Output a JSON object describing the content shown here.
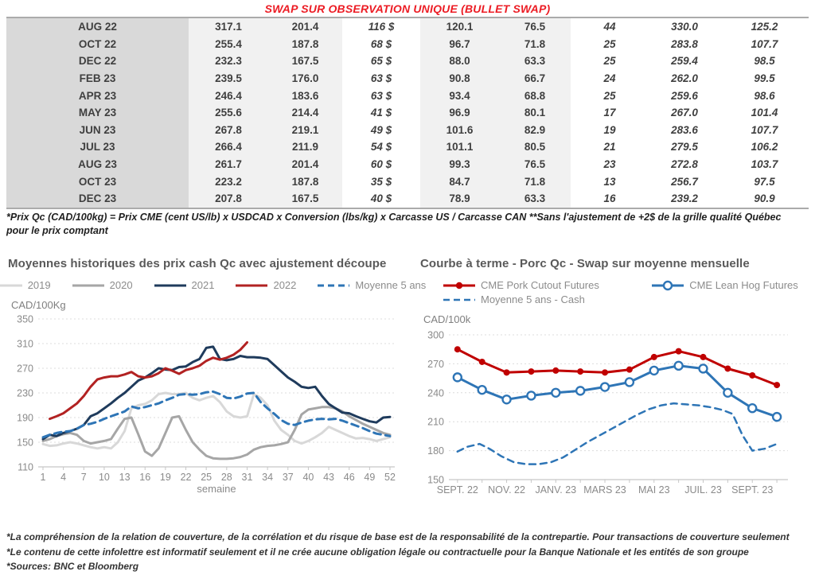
{
  "title": "SWAP SUR OBSERVATION UNIQUE (BULLET SWAP)",
  "accent_colors": {
    "title_red": "#ec1c24",
    "table_green": "#17a24f",
    "table_blue": "#3a6fc9"
  },
  "table": {
    "rows": [
      [
        "AUG 22",
        "317.1",
        "201.4",
        "116 $",
        "120.1",
        "76.5",
        "44",
        "330.0",
        "125.2"
      ],
      [
        "OCT 22",
        "255.4",
        "187.8",
        "68 $",
        "96.7",
        "71.8",
        "25",
        "283.8",
        "107.7"
      ],
      [
        "DEC 22",
        "232.3",
        "167.5",
        "65 $",
        "88.0",
        "63.3",
        "25",
        "259.4",
        "98.5"
      ],
      [
        "FEB 23",
        "239.5",
        "176.0",
        "63 $",
        "90.8",
        "66.7",
        "24",
        "262.0",
        "99.5"
      ],
      [
        "APR 23",
        "246.4",
        "183.6",
        "63 $",
        "93.4",
        "68.8",
        "25",
        "259.6",
        "98.6"
      ],
      [
        "MAY 23",
        "255.6",
        "214.4",
        "41 $",
        "96.9",
        "80.1",
        "17",
        "267.0",
        "101.4"
      ],
      [
        "JUN 23",
        "267.8",
        "219.1",
        "49 $",
        "101.6",
        "82.9",
        "19",
        "283.6",
        "107.7"
      ],
      [
        "JUL 23",
        "266.4",
        "211.9",
        "54 $",
        "101.1",
        "80.5",
        "21",
        "279.5",
        "106.2"
      ],
      [
        "AUG 23",
        "261.7",
        "201.4",
        "60 $",
        "99.3",
        "76.5",
        "23",
        "272.8",
        "103.7"
      ],
      [
        "OCT 23",
        "223.2",
        "187.8",
        "35 $",
        "84.7",
        "71.8",
        "13",
        "256.7",
        "97.5"
      ],
      [
        "DEC 23",
        "207.8",
        "167.5",
        "40 $",
        "78.9",
        "63.3",
        "16",
        "239.2",
        "90.9"
      ]
    ]
  },
  "table_note": "*Prix Qc (CAD/100kg) = Prix CME (cent US/lb) x USDCAD x Conversion (lbs/kg) x Carcasse US / Carcasse CAN **Sans l'ajustement de +2$ de la grille qualité Québec pour le prix comptant",
  "chart_data": [
    {
      "type": "line",
      "title": "Moyennes historiques des prix cash Qc avec ajustement découpe",
      "ylabel": "CAD/100Kg",
      "xlabel": "semaine",
      "ylim": [
        110,
        350
      ],
      "yticks": [
        110,
        150,
        190,
        230,
        270,
        310,
        350
      ],
      "xlim": [
        0.3,
        52.7
      ],
      "xticks": [
        1,
        4,
        7,
        10,
        13,
        16,
        19,
        22,
        25,
        28,
        31,
        34,
        37,
        40,
        43,
        46,
        49,
        52
      ],
      "grid": "horizontal-dashed",
      "legend_position": "top",
      "series": [
        {
          "name": "2019",
          "color": "#d8d8d8",
          "width": 3,
          "x0": 1,
          "values": [
            147,
            144,
            145,
            148,
            150,
            148,
            145,
            142,
            140,
            142,
            140,
            150,
            168,
            205,
            210,
            212,
            218,
            228,
            230,
            228,
            228,
            230,
            222,
            218,
            222,
            225,
            215,
            200,
            192,
            190,
            192,
            228,
            222,
            210,
            185,
            170,
            162,
            152,
            148,
            152,
            158,
            165,
            175,
            170,
            165,
            160,
            156,
            157,
            155,
            152,
            155,
            158
          ]
        },
        {
          "name": "2020",
          "color": "#a6a6a6",
          "width": 3,
          "x0": 1,
          "values": [
            152,
            155,
            160,
            163,
            165,
            162,
            152,
            148,
            150,
            152,
            155,
            172,
            188,
            190,
            163,
            135,
            128,
            140,
            165,
            190,
            192,
            170,
            150,
            138,
            128,
            124,
            123,
            123,
            124,
            126,
            130,
            138,
            142,
            144,
            145,
            147,
            150,
            170,
            195,
            203,
            205,
            207,
            207,
            205,
            200,
            192,
            186,
            180,
            175,
            170,
            165,
            162
          ]
        },
        {
          "name": "2021",
          "color": "#1f3b5c",
          "width": 3,
          "x0": 1,
          "values": [
            155,
            162,
            160,
            165,
            168,
            172,
            178,
            192,
            197,
            205,
            213,
            222,
            230,
            240,
            250,
            255,
            262,
            270,
            268,
            267,
            272,
            273,
            280,
            285,
            303,
            305,
            285,
            283,
            285,
            290,
            288,
            288,
            287,
            285,
            275,
            265,
            255,
            248,
            240,
            238,
            240,
            225,
            212,
            205,
            198,
            197,
            192,
            188,
            184,
            182,
            190,
            191
          ]
        },
        {
          "name": "2022",
          "color": "#b22222",
          "width": 3,
          "x0": 2,
          "values": [
            188,
            192,
            197,
            205,
            213,
            225,
            240,
            252,
            255,
            257,
            257,
            260,
            264,
            257,
            255,
            257,
            262,
            270,
            266,
            261,
            267,
            270,
            274,
            282,
            287,
            284,
            287,
            292,
            300,
            312
          ]
        },
        {
          "name": "Moyenne 5 ans",
          "color": "#2e75b6",
          "width": 3,
          "dash": "9,6",
          "x0": 1,
          "values": [
            158,
            162,
            165,
            167,
            168,
            172,
            178,
            180,
            183,
            188,
            192,
            196,
            200,
            208,
            205,
            207,
            210,
            213,
            218,
            222,
            227,
            228,
            227,
            228,
            231,
            232,
            228,
            222,
            221,
            224,
            229,
            230,
            215,
            205,
            196,
            186,
            180,
            178,
            182,
            185,
            187,
            188,
            187,
            188,
            185,
            181,
            177,
            173,
            168,
            164,
            162,
            160
          ]
        }
      ]
    },
    {
      "type": "line",
      "title": "Courbe à terme - Porc Qc - Swap sur moyenne mensuelle",
      "ylabel": "CAD/100k",
      "xlabel": "",
      "ylim": [
        150,
        300
      ],
      "yticks": [
        150,
        180,
        210,
        240,
        270,
        300
      ],
      "xlim": [
        -0.35,
        13.45
      ],
      "xticks": [
        0,
        2,
        4,
        6,
        8,
        10,
        12
      ],
      "xtick_labels": [
        "SEPT. 22",
        "NOV. 22",
        "JANV. 23",
        "MARS 23",
        "MAI 23",
        "JUIL. 23",
        "SEPT. 23"
      ],
      "minor_xticks": [
        0,
        1,
        2,
        3,
        4,
        5,
        6,
        7,
        8,
        9,
        10,
        11,
        12,
        13
      ],
      "grid": "horizontal-dashed",
      "legend_position": "top",
      "series": [
        {
          "name": "CME Pork Cutout Futures",
          "color": "#c00000",
          "width": 3,
          "marker": "circle-filled",
          "x0": 0,
          "values": [
            285,
            272,
            261,
            262,
            263,
            262,
            261,
            264,
            277,
            283,
            277,
            265,
            258,
            248
          ]
        },
        {
          "name": "CME Lean Hog Futures",
          "color": "#2e75b6",
          "width": 3,
          "marker": "circle-open",
          "x0": 0,
          "values": [
            256,
            243,
            233,
            237,
            240,
            242,
            246,
            251,
            263,
            268,
            265,
            240,
            224,
            215
          ]
        },
        {
          "name": "Moyenne 5 ans - Cash",
          "color": "#2e75b6",
          "width": 2.5,
          "dash": "8,6",
          "x": [
            0,
            0.4,
            0.9,
            1.3,
            1.8,
            2.3,
            2.8,
            3.3,
            3.8,
            4.3,
            4.8,
            5.3,
            5.8,
            6.3,
            6.8,
            7.3,
            7.8,
            8.3,
            8.8,
            9.3,
            9.8,
            10.3,
            10.8,
            11.2,
            11.6,
            12.0,
            12.5,
            13.0
          ],
          "values": [
            179,
            184,
            187,
            182,
            174,
            168,
            166,
            166,
            168,
            173,
            181,
            189,
            196,
            203,
            210,
            217,
            223,
            227,
            229,
            228,
            227,
            225,
            222,
            218,
            196,
            180,
            182,
            187
          ]
        }
      ]
    }
  ],
  "footer_notes": [
    "*La compréhension de la relation de couverture, de la corrélation et du risque de base est de la responsabilité de la contrepartie. Pour transactions de couverture seulement",
    "*Le contenu de cette infolettre est informatif seulement et il ne crée aucune obligation légale ou contractuelle pour la Banque Nationale et les entités de son groupe",
    "*Sources: BNC et Bloomberg"
  ]
}
